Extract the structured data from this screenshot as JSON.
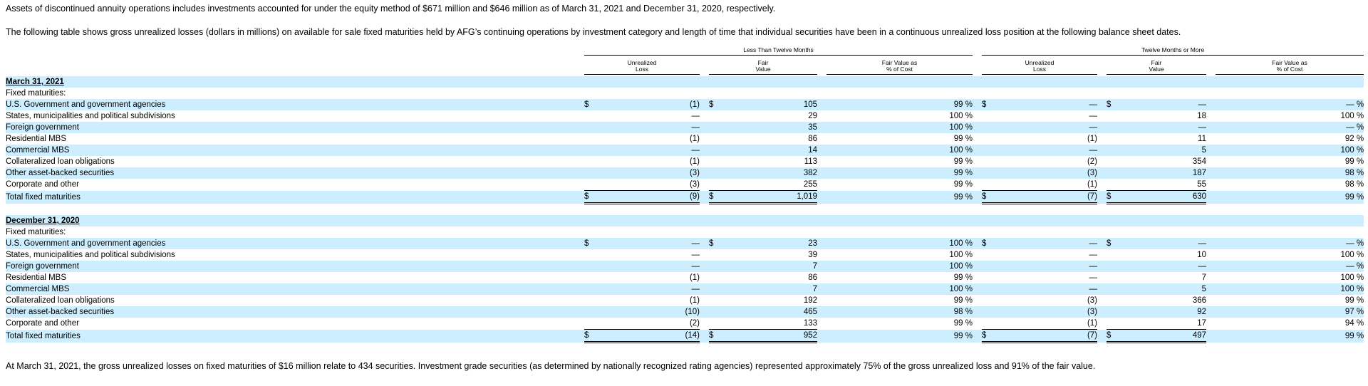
{
  "intro_note": "Assets of discontinued annuity operations includes investments accounted for under the equity method of $671 million and $646 million as of March 31, 2021 and December 31, 2020, respectively.",
  "intro_table": "The following table shows gross unrealized losses (dollars in millions) on available for sale fixed maturities held by AFG’s continuing operations by investment category and length of time that individual securities have been in a continuous unrealized loss position at the following balance sheet dates.",
  "footer_note": "At March 31, 2021, the gross unrealized losses on fixed maturities of $16 million relate to 434 securities. Investment grade securities (as determined by nationally recognized rating agencies) represented approximately 75% of the gross unrealized loss and 91% of the fair value.",
  "headers": {
    "group_less": "Less Than Twelve Months",
    "group_more": "Twelve Months or More",
    "unrealized_1": "Unrealized",
    "unrealized_2": "Loss",
    "fair_1": "Fair",
    "fair_2": "Value",
    "pct_1": "Fair Value as",
    "pct_2": "% of Cost"
  },
  "sections": [
    {
      "date": "March 31, 2021",
      "subheading": "Fixed maturities:",
      "rows": [
        {
          "label": "U.S. Government and government agencies",
          "dollar": true,
          "lt_loss": "(1)",
          "lt_fv": "105",
          "lt_pct": "99 %",
          "gt_loss": "—",
          "gt_fv": "—",
          "gt_pct": "— %"
        },
        {
          "label": "States, municipalities and political subdivisions",
          "dollar": false,
          "lt_loss": "—",
          "lt_fv": "29",
          "lt_pct": "100 %",
          "gt_loss": "—",
          "gt_fv": "18",
          "gt_pct": "100 %"
        },
        {
          "label": "Foreign government",
          "dollar": false,
          "lt_loss": "—",
          "lt_fv": "35",
          "lt_pct": "100 %",
          "gt_loss": "—",
          "gt_fv": "—",
          "gt_pct": "— %"
        },
        {
          "label": "Residential MBS",
          "dollar": false,
          "lt_loss": "(1)",
          "lt_fv": "86",
          "lt_pct": "99 %",
          "gt_loss": "(1)",
          "gt_fv": "11",
          "gt_pct": "92 %"
        },
        {
          "label": "Commercial MBS",
          "dollar": false,
          "lt_loss": "—",
          "lt_fv": "14",
          "lt_pct": "100 %",
          "gt_loss": "—",
          "gt_fv": "5",
          "gt_pct": "100 %"
        },
        {
          "label": "Collateralized loan obligations",
          "dollar": false,
          "lt_loss": "(1)",
          "lt_fv": "113",
          "lt_pct": "99 %",
          "gt_loss": "(2)",
          "gt_fv": "354",
          "gt_pct": "99 %"
        },
        {
          "label": "Other asset-backed securities",
          "dollar": false,
          "lt_loss": "(3)",
          "lt_fv": "382",
          "lt_pct": "99 %",
          "gt_loss": "(3)",
          "gt_fv": "187",
          "gt_pct": "98 %"
        },
        {
          "label": "Corporate and other",
          "dollar": false,
          "lt_loss": "(3)",
          "lt_fv": "255",
          "lt_pct": "99 %",
          "gt_loss": "(1)",
          "gt_fv": "55",
          "gt_pct": "98 %"
        }
      ],
      "total": {
        "label": "Total fixed maturities",
        "lt_loss": "(9)",
        "lt_fv": "1,019",
        "lt_pct": "99 %",
        "gt_loss": "(7)",
        "gt_fv": "630",
        "gt_pct": "99 %"
      }
    },
    {
      "date": "December 31, 2020",
      "subheading": "Fixed maturities:",
      "rows": [
        {
          "label": "U.S. Government and government agencies",
          "dollar": true,
          "lt_loss": "—",
          "lt_fv": "23",
          "lt_pct": "100 %",
          "gt_loss": "—",
          "gt_fv": "—",
          "gt_pct": "— %"
        },
        {
          "label": "States, municipalities and political subdivisions",
          "dollar": false,
          "lt_loss": "—",
          "lt_fv": "39",
          "lt_pct": "100 %",
          "gt_loss": "—",
          "gt_fv": "10",
          "gt_pct": "100 %"
        },
        {
          "label": "Foreign government",
          "dollar": false,
          "lt_loss": "—",
          "lt_fv": "7",
          "lt_pct": "100 %",
          "gt_loss": "—",
          "gt_fv": "—",
          "gt_pct": "— %"
        },
        {
          "label": "Residential MBS",
          "dollar": false,
          "lt_loss": "(1)",
          "lt_fv": "86",
          "lt_pct": "99 %",
          "gt_loss": "—",
          "gt_fv": "7",
          "gt_pct": "100 %"
        },
        {
          "label": "Commercial MBS",
          "dollar": false,
          "lt_loss": "—",
          "lt_fv": "7",
          "lt_pct": "100 %",
          "gt_loss": "—",
          "gt_fv": "5",
          "gt_pct": "100 %"
        },
        {
          "label": "Collateralized loan obligations",
          "dollar": false,
          "lt_loss": "(1)",
          "lt_fv": "192",
          "lt_pct": "99 %",
          "gt_loss": "(3)",
          "gt_fv": "366",
          "gt_pct": "99 %"
        },
        {
          "label": "Other asset-backed securities",
          "dollar": false,
          "lt_loss": "(10)",
          "lt_fv": "465",
          "lt_pct": "98 %",
          "gt_loss": "(3)",
          "gt_fv": "92",
          "gt_pct": "97 %"
        },
        {
          "label": "Corporate and other",
          "dollar": false,
          "lt_loss": "(2)",
          "lt_fv": "133",
          "lt_pct": "99 %",
          "gt_loss": "(1)",
          "gt_fv": "17",
          "gt_pct": "94 %"
        }
      ],
      "total": {
        "label": "Total fixed maturities",
        "lt_loss": "(14)",
        "lt_fv": "952",
        "lt_pct": "99 %",
        "gt_loss": "(7)",
        "gt_fv": "497",
        "gt_pct": "99 %"
      }
    }
  ],
  "currency_symbol": "$",
  "colors": {
    "row_shade": "#cceeff"
  }
}
